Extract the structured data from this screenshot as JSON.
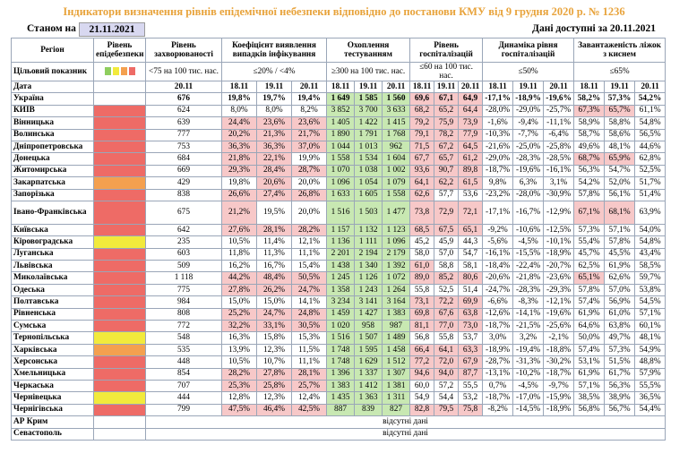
{
  "header": {
    "title": "Індикатори визначення рівнів епідемічної небезпеки відповідно до постанови КМУ від 9 грудня 2020 р. № 1236",
    "as_of_label": "Станом на",
    "as_of_date": "21.11.2021",
    "data_available": "Дані доступні за 20.11.2021"
  },
  "table": {
    "columns": [
      "Регіон",
      "Рівень епідебезпеки",
      "Рівень захворюваності",
      "Коефіцієнт виявлення випадків інфікування",
      "Охоплення тестуванням",
      "Рівень госпіталізацій",
      "Динаміка рівня госпіталізацій",
      "Завантаженість ліжок з киснем"
    ],
    "target_label": "Цільовий показник",
    "targets": [
      "<75 на 100 тис. нас.",
      "≤20% / <4%",
      "≥300 на 100 тис. нас.",
      "≤60 на 100 тис. нас.",
      "≤50%",
      "≤65%"
    ],
    "date_label": "Дата",
    "rate_date": "20.11",
    "dates": [
      "18.11",
      "19.11",
      "20.11"
    ],
    "rows": [
      {
        "region": "Україна",
        "values": [
          "676",
          "19,8%",
          "19,7%",
          "19,4%",
          "1 649",
          "1 585",
          "1 560",
          "69,6",
          "67,1",
          "64,9",
          "-17,1%",
          "-18,9%",
          "-19,6%",
          "58,2%",
          "57,3%",
          "54,2%"
        ],
        "shading": "wwwgggpppwwwwww"
      },
      {
        "region": "КИЇВ",
        "level_color": "#ee6b66",
        "values": [
          "624",
          "8,0%",
          "8,0%",
          "8,2%",
          "3 852",
          "3 700",
          "3 633",
          "68,2",
          "65,2",
          "64,4",
          "-28,0%",
          "-29,0%",
          "-25,7%",
          "67,3%",
          "65,7%",
          "61,1%"
        ],
        "shading": "wwwgggpppwwwppw"
      },
      {
        "region": "Вінницька",
        "level_color": "#ee6b66",
        "values": [
          "639",
          "24,4%",
          "23,6%",
          "23,6%",
          "1 405",
          "1 422",
          "1 415",
          "79,2",
          "75,9",
          "73,9",
          "-1,6%",
          "-9,4%",
          "-11,1%",
          "58,9%",
          "58,8%",
          "54,8%"
        ],
        "shading": "pppgggpppwwwwww"
      },
      {
        "region": "Волинська",
        "level_color": "#ee6b66",
        "values": [
          "777",
          "20,2%",
          "21,3%",
          "21,7%",
          "1 890",
          "1 791",
          "1 768",
          "79,1",
          "78,2",
          "77,9",
          "-10,3%",
          "-7,7%",
          "-6,4%",
          "58,7%",
          "58,6%",
          "56,5%"
        ],
        "shading": "pppgggpppwwwwww"
      },
      {
        "region": "Дніпропетровська",
        "level_color": "#ee6b66",
        "values": [
          "753",
          "36,3%",
          "36,3%",
          "37,0%",
          "1 044",
          "1 013",
          "962",
          "71,5",
          "67,2",
          "64,5",
          "-21,6%",
          "-25,0%",
          "-25,8%",
          "49,6%",
          "48,1%",
          "44,6%"
        ],
        "shading": "pppgggpppwwwwww"
      },
      {
        "region": "Донецька",
        "level_color": "#ee6b66",
        "values": [
          "684",
          "21,8%",
          "22,1%",
          "19,9%",
          "1 558",
          "1 534",
          "1 604",
          "67,7",
          "65,7",
          "61,2",
          "-29,0%",
          "-28,3%",
          "-28,5%",
          "68,7%",
          "65,9%",
          "62,8%"
        ],
        "shading": "ppwgggpppwwwppw"
      },
      {
        "region": "Житомирська",
        "level_color": "#ee6b66",
        "values": [
          "669",
          "29,3%",
          "28,4%",
          "28,7%",
          "1 070",
          "1 038",
          "1 002",
          "93,6",
          "90,7",
          "89,8",
          "-18,7%",
          "-19,6%",
          "-16,1%",
          "56,3%",
          "54,7%",
          "52,5%"
        ],
        "shading": "pppgggpppwwwwww"
      },
      {
        "region": "Закарпатська",
        "level_color": "#f4a04f",
        "values": [
          "429",
          "19,8%",
          "20,6%",
          "20,0%",
          "1 096",
          "1 054",
          "1 079",
          "64,1",
          "62,2",
          "61,5",
          "9,8%",
          "6,3%",
          "3,1%",
          "54,2%",
          "52,0%",
          "51,7%"
        ],
        "shading": "wpwgggpppwwwwww"
      },
      {
        "region": "Запорізька",
        "level_color": "#ee6b66",
        "values": [
          "838",
          "26,6%",
          "27,4%",
          "26,8%",
          "1 633",
          "1 605",
          "1 558",
          "62,6",
          "57,7",
          "53,6",
          "-23,2%",
          "-28,0%",
          "-30,9%",
          "57,8%",
          "56,1%",
          "51,4%"
        ],
        "shading": "pppgggpwwwwwwww"
      },
      {
        "region": "Івано-Франківська",
        "level_color": "#ee6b66",
        "values": [
          "675",
          "21,2%",
          "19,5%",
          "20,0%",
          "1 516",
          "1 503",
          "1 477",
          "73,8",
          "72,9",
          "72,1",
          "-17,1%",
          "-16,7%",
          "-12,9%",
          "67,1%",
          "68,1%",
          "63,9%"
        ],
        "shading": "pwwgggpppwwwppw"
      },
      {
        "region": "Київська",
        "level_color": "#ee6b66",
        "values": [
          "642",
          "27,6%",
          "28,1%",
          "28,2%",
          "1 157",
          "1 132",
          "1 123",
          "68,5",
          "67,5",
          "65,1",
          "-9,2%",
          "-10,6%",
          "-12,5%",
          "57,3%",
          "57,1%",
          "54,0%"
        ],
        "shading": "pppgggpppwwwwww"
      },
      {
        "region": "Кіровоградська",
        "level_color": "#f2ea3c",
        "values": [
          "235",
          "10,5%",
          "11,4%",
          "12,1%",
          "1 136",
          "1 111",
          "1 096",
          "45,2",
          "45,9",
          "44,3",
          "-5,6%",
          "-4,5%",
          "-10,1%",
          "55,4%",
          "57,8%",
          "54,8%"
        ],
        "shading": "wwwgggwwwwwwwww"
      },
      {
        "region": "Луганська",
        "level_color": "#ee6b66",
        "values": [
          "603",
          "11,8%",
          "11,3%",
          "11,1%",
          "2 201",
          "2 194",
          "2 179",
          "58,0",
          "57,0",
          "54,7",
          "-16,1%",
          "-15,5%",
          "-18,9%",
          "45,7%",
          "45,5%",
          "43,4%"
        ],
        "shading": "wwwgggwwwwwwwww"
      },
      {
        "region": "Львівська",
        "level_color": "#ee6b66",
        "values": [
          "509",
          "16,2%",
          "16,7%",
          "15,4%",
          "1 438",
          "1 340",
          "1 392",
          "61,0",
          "58,8",
          "58,1",
          "-18,4%",
          "-22,4%",
          "-20,7%",
          "62,5%",
          "61,9%",
          "58,5%"
        ],
        "shading": "wwwgggpwwwwwwww"
      },
      {
        "region": "Миколаївська",
        "level_color": "#ee6b66",
        "values": [
          "1 118",
          "44,2%",
          "48,4%",
          "50,5%",
          "1 245",
          "1 126",
          "1 072",
          "89,0",
          "85,2",
          "80,6",
          "-20,6%",
          "-21,8%",
          "-23,6%",
          "65,1%",
          "62,6%",
          "59,7%"
        ],
        "shading": "pppgggpppwwwpww"
      },
      {
        "region": "Одеська",
        "level_color": "#ee6b66",
        "values": [
          "775",
          "27,8%",
          "26,2%",
          "24,7%",
          "1 358",
          "1 243",
          "1 264",
          "55,8",
          "52,5",
          "51,4",
          "-24,7%",
          "-28,3%",
          "-29,3%",
          "57,8%",
          "57,0%",
          "53,8%"
        ],
        "shading": "pppgggwwwwwwwww"
      },
      {
        "region": "Полтавська",
        "level_color": "#ee6b66",
        "values": [
          "984",
          "15,0%",
          "15,0%",
          "14,1%",
          "3 234",
          "3 141",
          "3 164",
          "73,1",
          "72,2",
          "69,9",
          "-6,6%",
          "-8,3%",
          "-12,1%",
          "57,4%",
          "56,9%",
          "54,5%"
        ],
        "shading": "wwwgggpppwwwwww"
      },
      {
        "region": "Рівненська",
        "level_color": "#ee6b66",
        "values": [
          "808",
          "25,2%",
          "24,7%",
          "24,8%",
          "1 459",
          "1 427",
          "1 383",
          "69,8",
          "67,6",
          "63,8",
          "-12,6%",
          "-14,1%",
          "-19,6%",
          "61,9%",
          "61,0%",
          "57,1%"
        ],
        "shading": "pppgggpppwwwwww"
      },
      {
        "region": "Сумська",
        "level_color": "#ee6b66",
        "values": [
          "772",
          "32,2%",
          "33,1%",
          "30,5%",
          "1 020",
          "958",
          "987",
          "81,1",
          "77,0",
          "73,0",
          "-18,7%",
          "-21,5%",
          "-25,6%",
          "64,6%",
          "63,8%",
          "60,1%"
        ],
        "shading": "pppgggpppwwwwww"
      },
      {
        "region": "Тернопільська",
        "level_color": "#f2ea3c",
        "values": [
          "548",
          "16,3%",
          "15,8%",
          "15,3%",
          "1 516",
          "1 507",
          "1 489",
          "56,8",
          "55,8",
          "53,7",
          "3,0%",
          "3,2%",
          "-2,1%",
          "50,0%",
          "49,7%",
          "48,1%"
        ],
        "shading": "wwwgggwwwwwwwww"
      },
      {
        "region": "Харківська",
        "level_color": "#f4a04f",
        "values": [
          "535",
          "13,9%",
          "12,3%",
          "11,5%",
          "1 748",
          "1 595",
          "1 458",
          "66,4",
          "64,1",
          "63,3",
          "-18,9%",
          "-19,4%",
          "-18,8%",
          "57,4%",
          "57,3%",
          "54,9%"
        ],
        "shading": "wwwgggpppwwwwww"
      },
      {
        "region": "Херсонська",
        "level_color": "#ee6b66",
        "values": [
          "448",
          "10,5%",
          "10,7%",
          "11,1%",
          "1 748",
          "1 629",
          "1 512",
          "77,2",
          "72,0",
          "67,9",
          "-28,7%",
          "-31,3%",
          "-30,2%",
          "53,1%",
          "51,5%",
          "48,8%"
        ],
        "shading": "wwwgggpppwwwwww"
      },
      {
        "region": "Хмельницька",
        "level_color": "#ee6b66",
        "values": [
          "854",
          "28,2%",
          "27,8%",
          "28,1%",
          "1 396",
          "1 337",
          "1 307",
          "94,6",
          "94,0",
          "87,7",
          "-13,1%",
          "-10,2%",
          "-18,7%",
          "61,9%",
          "61,7%",
          "57,9%"
        ],
        "shading": "pppgggpppwwwwww"
      },
      {
        "region": "Черкаська",
        "level_color": "#ee6b66",
        "values": [
          "707",
          "25,3%",
          "25,8%",
          "25,7%",
          "1 383",
          "1 412",
          "1 381",
          "60,0",
          "57,2",
          "55,5",
          "0,7%",
          "-4,5%",
          "-9,7%",
          "57,1%",
          "56,3%",
          "55,5%"
        ],
        "shading": "pppgggwwwwwwwww"
      },
      {
        "region": "Чернівецька",
        "level_color": "#f2ea3c",
        "values": [
          "444",
          "12,8%",
          "12,3%",
          "12,4%",
          "1 435",
          "1 363",
          "1 311",
          "54,9",
          "54,4",
          "53,2",
          "-18,7%",
          "-17,0%",
          "-15,9%",
          "38,5%",
          "38,9%",
          "36,5%"
        ],
        "shading": "wwwgggwwwwwwwww"
      },
      {
        "region": "Чернігівська",
        "level_color": "#ee6b66",
        "values": [
          "799",
          "47,5%",
          "46,4%",
          "42,5%",
          "887",
          "839",
          "827",
          "82,8",
          "79,5",
          "75,8",
          "-8,2%",
          "-14,5%",
          "-18,9%",
          "56,8%",
          "56,7%",
          "54,4%"
        ],
        "shading": "pppgggpppwwwwww"
      },
      {
        "region": "АР Крим",
        "note": "відсутні дані"
      },
      {
        "region": "Севастополь",
        "note": "відсутні дані"
      }
    ]
  }
}
